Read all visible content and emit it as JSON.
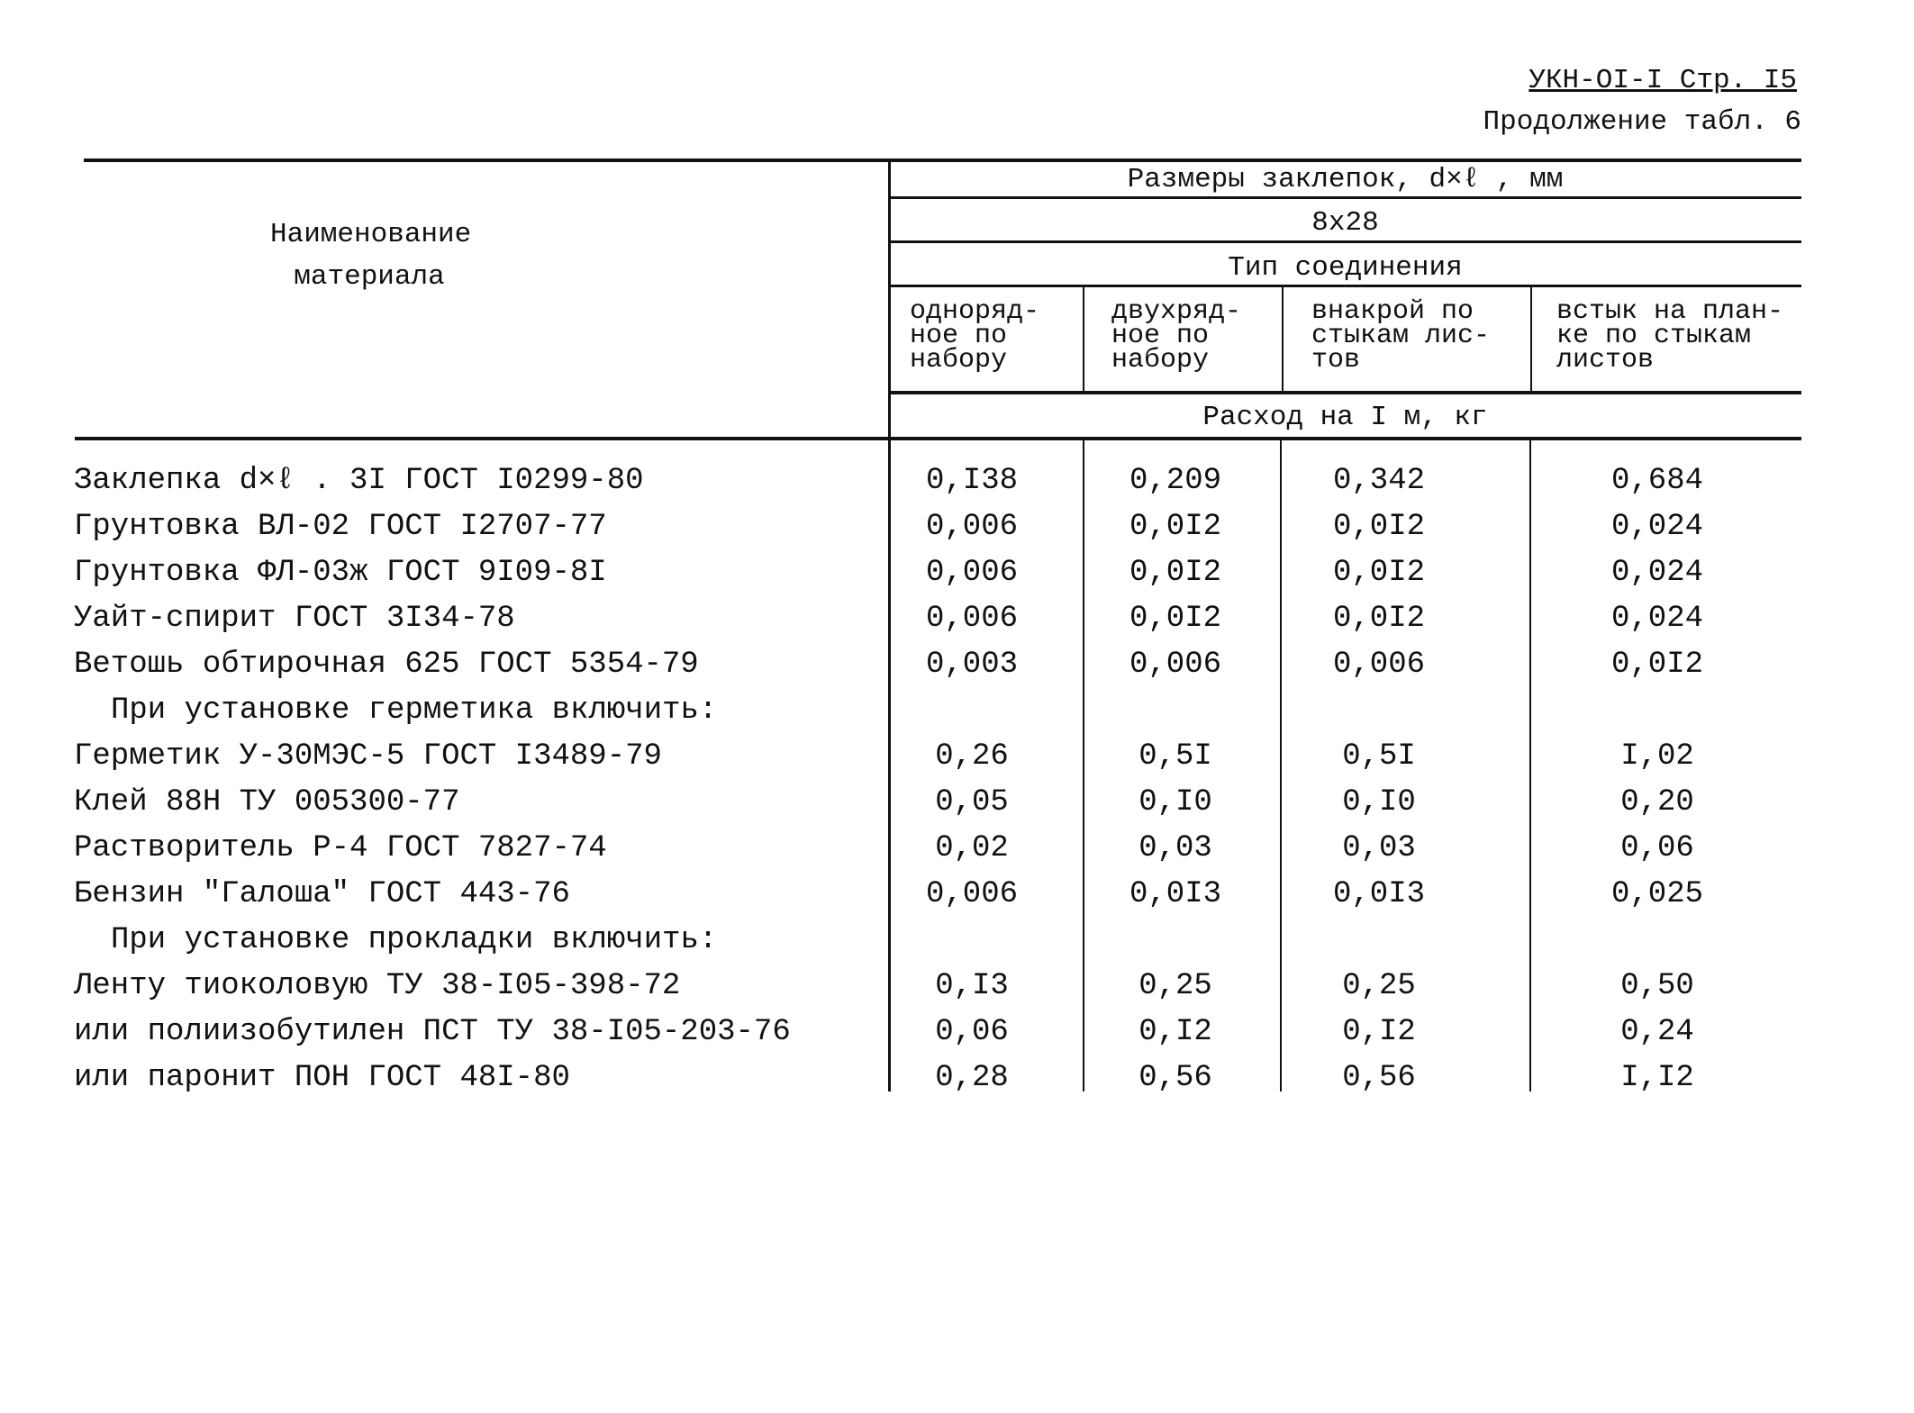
{
  "header": {
    "reference": "УКН-OI-I Стр. I5",
    "continuation": "Продолжение табл. 6"
  },
  "table": {
    "head": {
      "name": "Наименование\nматериала",
      "sizes": "Размеры заклепок, d×ℓ , мм",
      "size": "8x28",
      "connection": "Тип соединения",
      "columns": [
        "одноряд-\nное по\nнабору",
        "двухряд-\nное по\nнабору",
        "внакрой по\nстыкам лис-\nтов",
        "встык на план-\nке по стыкам\nлистов"
      ],
      "unit": "Расход на I м, кг"
    },
    "rows": [
      {
        "name": "Заклепка d×ℓ . 3I ГОСТ I0299-80",
        "values": [
          "0,I38",
          "0,209",
          "0,342",
          "0,684"
        ]
      },
      {
        "name": "Грунтовка ВЛ-02 ГОСТ I2707-77",
        "values": [
          "0,006",
          "0,0I2",
          "0,0I2",
          "0,024"
        ]
      },
      {
        "name": "Грунтовка ФЛ-03ж ГОСТ 9I09-8I",
        "values": [
          "0,006",
          "0,0I2",
          "0,0I2",
          "0,024"
        ]
      },
      {
        "name": "Уайт-спирит ГОСТ 3I34-78",
        "values": [
          "0,006",
          "0,0I2",
          "0,0I2",
          "0,024"
        ]
      },
      {
        "name": "Ветошь обтирочная 625 ГОСТ 5354-79",
        "values": [
          "0,003",
          "0,006",
          "0,006",
          "0,0I2"
        ]
      },
      {
        "section": "При установке герметика включить:"
      },
      {
        "name": "Герметик У-30МЭС-5 ГОСТ I3489-79",
        "values": [
          "0,26",
          "0,5I",
          "0,5I",
          "I,02"
        ]
      },
      {
        "name": "Клей 88Н ТУ 005300-77",
        "values": [
          "0,05",
          "0,I0",
          "0,I0",
          "0,20"
        ]
      },
      {
        "name": "Растворитель Р-4 ГОСТ 7827-74",
        "values": [
          "0,02",
          "0,03",
          "0,03",
          "0,06"
        ]
      },
      {
        "name": "Бензин \"Галоша\" ГОСТ 443-76",
        "values": [
          "0,006",
          "0,0I3",
          "0,0I3",
          "0,025"
        ]
      },
      {
        "section": "При установке прокладки включить:"
      },
      {
        "name": "Ленту тиоколовую ТУ 38-I05-398-72",
        "values": [
          "0,I3",
          "0,25",
          "0,25",
          "0,50"
        ]
      },
      {
        "name": "или полиизобутилен ПСТ ТУ 38-I05-203-76",
        "values": [
          "0,06",
          "0,I2",
          "0,I2",
          "0,24"
        ]
      },
      {
        "name": "или паронит ПОН ГОСТ 48I-80",
        "values": [
          "0,28",
          "0,56",
          "0,56",
          "I,I2"
        ]
      }
    ]
  }
}
